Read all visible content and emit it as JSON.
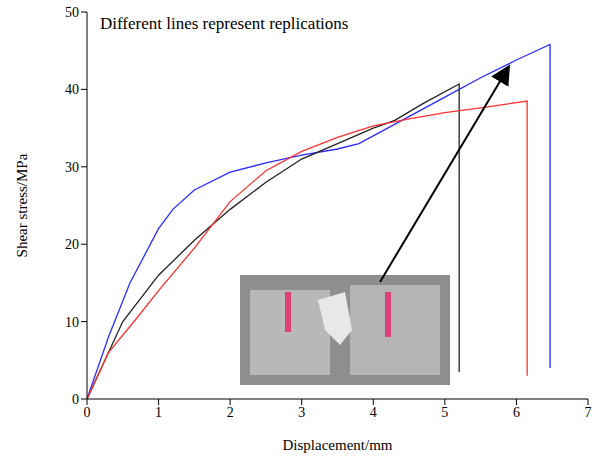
{
  "chart_data": {
    "type": "line",
    "annotations": [
      "Different lines represent replications"
    ],
    "xlabel": "Displacement/mm",
    "ylabel": "Shear stress/MPa",
    "xlim": [
      0,
      7
    ],
    "xticks": [
      0,
      1,
      2,
      3,
      4,
      5,
      6,
      7
    ],
    "ylim": [
      0,
      50
    ],
    "yticks": [
      0,
      10,
      20,
      30,
      40,
      50
    ],
    "grid": false,
    "series": [
      {
        "color": "#2b2bff",
        "x": [
          0,
          0.3,
          0.6,
          1,
          1.2,
          1.5,
          2,
          2.5,
          3,
          3.5,
          3.8,
          4.2,
          5,
          5.5,
          6,
          6.47,
          6.47
        ],
        "values": [
          0,
          8,
          15,
          22,
          24.5,
          27,
          29.3,
          30.5,
          31.5,
          32.3,
          33,
          35,
          39,
          41.5,
          43.8,
          45.8,
          4
        ]
      },
      {
        "color": "#222222",
        "x": [
          0,
          0.5,
          1,
          1.5,
          2,
          2.5,
          3,
          3.5,
          4,
          4.3,
          4.7,
          5.2,
          5.2
        ],
        "values": [
          0,
          10,
          16,
          20.5,
          24.5,
          28,
          31,
          33,
          35,
          36,
          38.2,
          40.7,
          3.5
        ]
      },
      {
        "color": "#ff3030",
        "x": [
          0,
          0.3,
          0.7,
          1,
          1.5,
          2,
          2.5,
          3,
          3.5,
          4,
          4.5,
          5,
          5.5,
          6.15,
          6.15
        ],
        "values": [
          0,
          6,
          10.5,
          14,
          19.5,
          25.5,
          29.5,
          32,
          33.8,
          35.3,
          36.2,
          37,
          37.6,
          38.5,
          3
        ]
      }
    ]
  }
}
